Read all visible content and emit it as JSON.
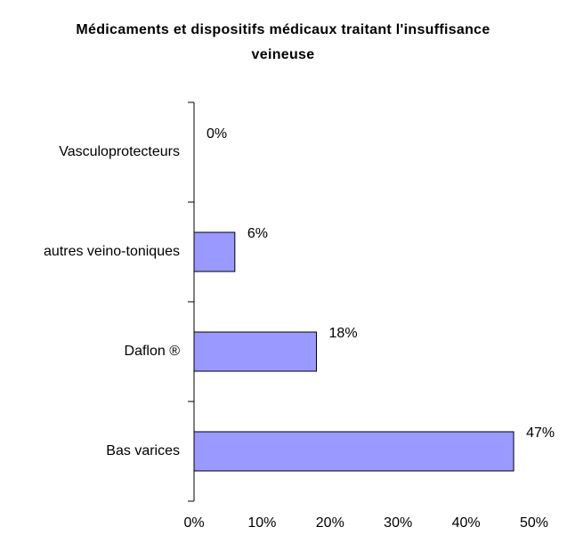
{
  "chart_data": {
    "type": "barh",
    "title": "Médicaments et dispositifs médicaux traitant l'insuffisance veineuse",
    "categories": [
      "Vasculoprotecteurs",
      "autres veino-toniques",
      "Daflon ®",
      "Bas varices"
    ],
    "values": [
      0,
      6,
      18,
      47
    ],
    "value_labels": [
      "0%",
      "6%",
      "18%",
      "47%"
    ],
    "color": "#9999ff",
    "xlim": [
      0,
      50
    ],
    "xticks": [
      {
        "value": 0,
        "label": "0%"
      },
      {
        "value": 10,
        "label": "10%"
      },
      {
        "value": 20,
        "label": "20%"
      },
      {
        "value": 30,
        "label": "30%"
      },
      {
        "value": 40,
        "label": "40%"
      },
      {
        "value": 50,
        "label": "50%"
      }
    ],
    "grid": false
  }
}
